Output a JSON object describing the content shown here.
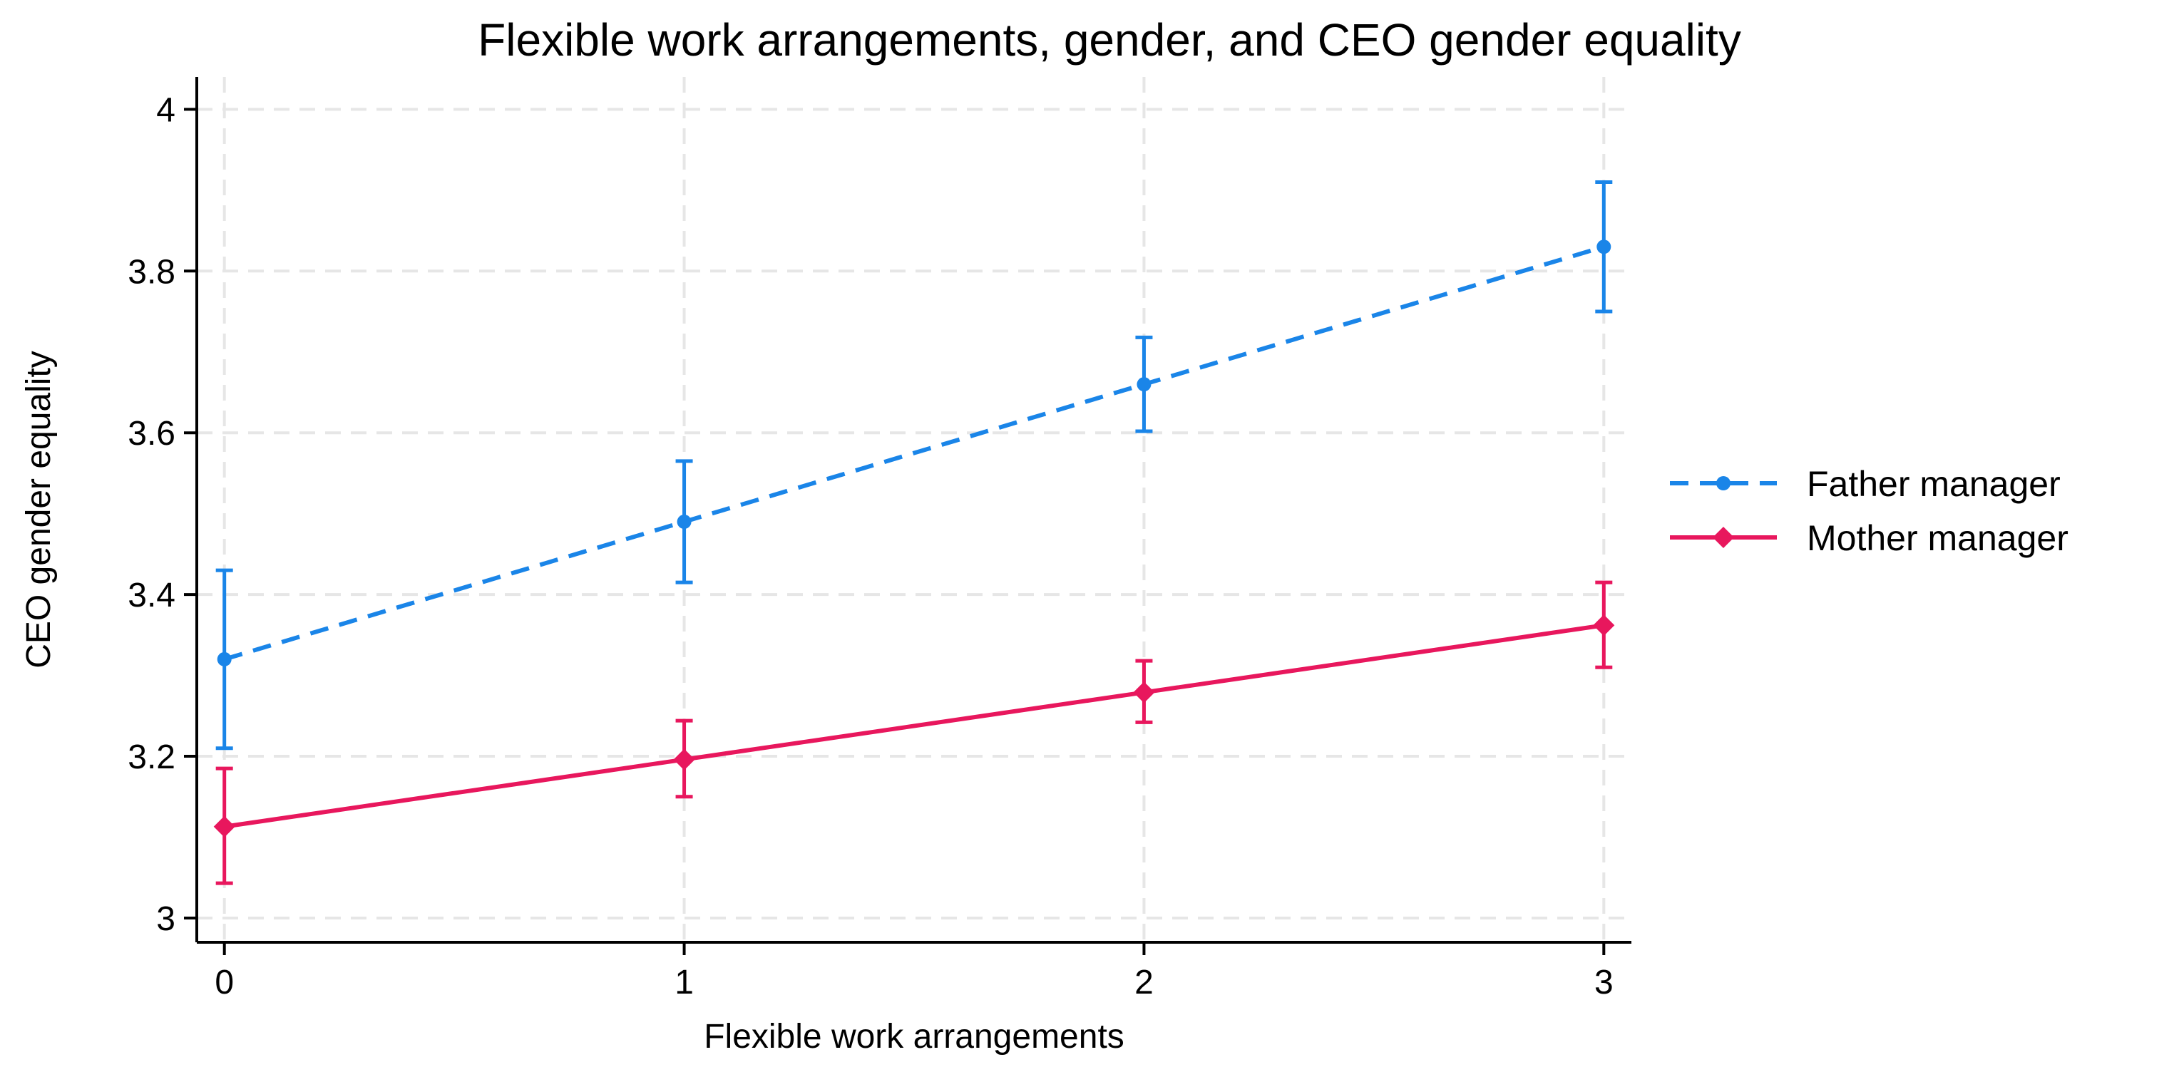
{
  "chart_data": {
    "type": "line",
    "title": "Flexible work arrangements, gender, and CEO gender equality",
    "xlabel": "Flexible work arrangements",
    "ylabel": "CEO gender equality",
    "x": [
      0,
      1,
      2,
      3
    ],
    "x_ticks": [
      "0",
      "1",
      "2",
      "3"
    ],
    "y_ticks": [
      "3",
      "3.2",
      "3.4",
      "3.6",
      "3.8",
      "4"
    ],
    "xlim": [
      -0.06,
      3.06
    ],
    "ylim": [
      2.97,
      4.04
    ],
    "grid": true,
    "legend_position": "right",
    "series": [
      {
        "name": "Father manager",
        "color": "#1a85e8",
        "line_style": "dashed",
        "marker": "circle",
        "values": [
          3.32,
          3.49,
          3.66,
          3.83
        ],
        "ci_low": [
          3.21,
          3.415,
          3.602,
          3.75
        ],
        "ci_high": [
          3.43,
          3.565,
          3.718,
          3.91
        ]
      },
      {
        "name": "Mother manager",
        "color": "#e8175d",
        "line_style": "solid",
        "marker": "diamond",
        "values": [
          3.113,
          3.196,
          3.279,
          3.362
        ],
        "ci_low": [
          3.043,
          3.15,
          3.242,
          3.31
        ],
        "ci_high": [
          3.185,
          3.244,
          3.318,
          3.415
        ]
      }
    ]
  }
}
